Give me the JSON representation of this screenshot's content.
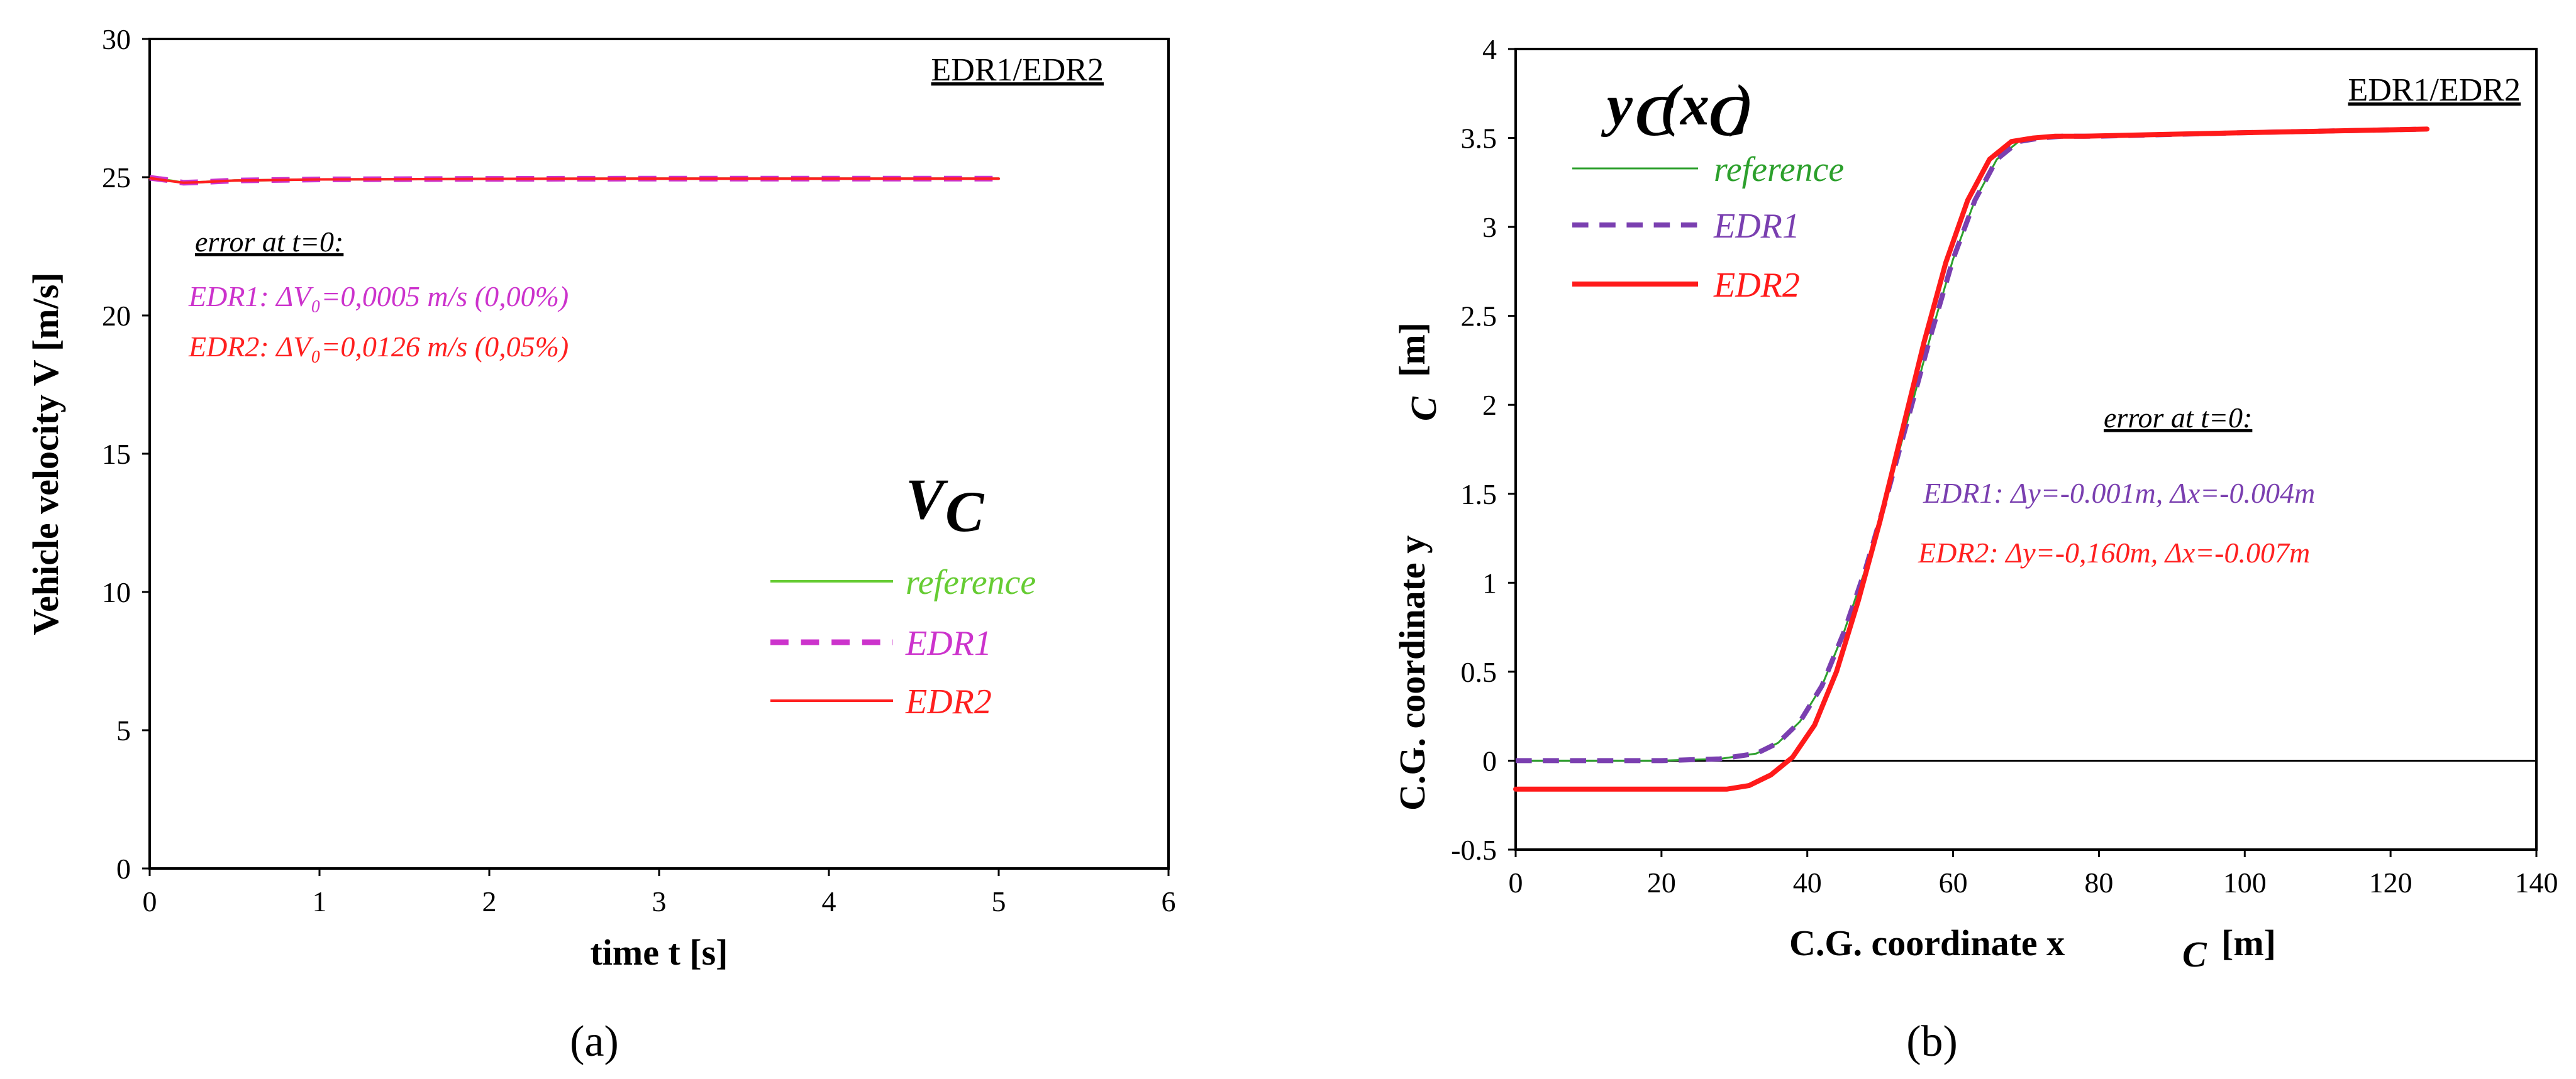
{
  "chart_data": [
    {
      "type": "line",
      "panel_label": "(a)",
      "corner_tag": "EDR1/EDR2",
      "symbol": "V",
      "symbol_sub": "C",
      "xlabel": "time t [s]",
      "ylabel": "Vehicle velocity V [m/s]",
      "xlim": [
        0,
        6
      ],
      "ylim": [
        0,
        30
      ],
      "x_ticks": [
        "0",
        "1",
        "2",
        "3",
        "4",
        "5",
        "6"
      ],
      "y_ticks": [
        "0",
        "5",
        "10",
        "15",
        "20",
        "25",
        "30"
      ],
      "annotation_title": "error at t=0:",
      "annotations": [
        {
          "label": "EDR1: ΔV₀=0,0005 m/s (0,00%)",
          "color": "#cc33cc"
        },
        {
          "label": "EDR2: ΔV₀=0,0126 m/s (0,05%)",
          "color": "#ff2020"
        }
      ],
      "series": [
        {
          "name": "reference",
          "color": "#66cc33",
          "style": "solid",
          "width": 4,
          "x": [
            0,
            0.1,
            0.2,
            0.3,
            0.5,
            1,
            2,
            3,
            4,
            5
          ],
          "y": [
            24.98,
            24.9,
            24.8,
            24.82,
            24.88,
            24.92,
            24.94,
            24.95,
            24.95,
            24.95
          ]
        },
        {
          "name": "EDR1",
          "color": "#cc33cc",
          "style": "dashed",
          "width": 9,
          "x": [
            0,
            0.1,
            0.2,
            0.3,
            0.5,
            1,
            2,
            3,
            4,
            5
          ],
          "y": [
            24.98,
            24.9,
            24.8,
            24.82,
            24.88,
            24.92,
            24.94,
            24.95,
            24.95,
            24.95
          ]
        },
        {
          "name": "EDR2",
          "color": "#ff2020",
          "style": "solid",
          "width": 4,
          "x": [
            0,
            0.1,
            0.2,
            0.3,
            0.5,
            1,
            2,
            3,
            4,
            5
          ],
          "y": [
            24.97,
            24.88,
            24.8,
            24.82,
            24.88,
            24.92,
            24.94,
            24.95,
            24.95,
            24.95
          ]
        }
      ]
    },
    {
      "type": "line",
      "panel_label": "(b)",
      "corner_tag": "EDR1/EDR2",
      "symbol": "y",
      "symbol_sub": "C",
      "symbol_arg": "x",
      "symbol_arg_sub": "C",
      "xlabel": "C.G. coordinate x",
      "xlabel_sub": "C",
      "xlabel_unit": "[m]",
      "ylabel": "C.G. coordinate y",
      "ylabel_sub": "C",
      "ylabel_unit": "[m]",
      "xlim": [
        0,
        140
      ],
      "ylim": [
        -0.5,
        4
      ],
      "x_ticks": [
        "0",
        "20",
        "40",
        "60",
        "80",
        "100",
        "120",
        "140"
      ],
      "y_ticks": [
        "-0.5",
        "0",
        "0.5",
        "1",
        "1.5",
        "2",
        "2.5",
        "3",
        "3.5",
        "4"
      ],
      "annotation_title": "error at t=0:",
      "annotations": [
        {
          "label": "EDR1: Δy=-0.001m, Δx=-0.004m",
          "color": "#7a3fb0"
        },
        {
          "label": "EDR2: Δy=-0,160m, Δx=-0.007m",
          "color": "#ff2020"
        }
      ],
      "series": [
        {
          "name": "reference",
          "color": "#2ca02c",
          "style": "solid",
          "width": 3,
          "x": [
            0,
            20,
            28,
            33,
            36,
            39,
            42,
            45,
            48,
            51,
            54,
            57,
            60,
            63,
            66,
            69,
            72,
            75,
            80,
            100,
            125
          ],
          "y": [
            0,
            0,
            0.01,
            0.04,
            0.1,
            0.22,
            0.42,
            0.72,
            1.08,
            1.5,
            1.95,
            2.4,
            2.82,
            3.15,
            3.38,
            3.48,
            3.5,
            3.51,
            3.51,
            3.53,
            3.55
          ]
        },
        {
          "name": "EDR1",
          "color": "#7a3fb0",
          "style": "dashed",
          "width": 8,
          "x": [
            0,
            20,
            28,
            33,
            36,
            39,
            42,
            45,
            48,
            51,
            54,
            57,
            60,
            63,
            66,
            69,
            72,
            75,
            80,
            100,
            125
          ],
          "y": [
            0,
            0,
            0.01,
            0.04,
            0.1,
            0.22,
            0.42,
            0.72,
            1.08,
            1.5,
            1.95,
            2.4,
            2.82,
            3.15,
            3.38,
            3.48,
            3.5,
            3.51,
            3.51,
            3.53,
            3.55
          ]
        },
        {
          "name": "EDR2",
          "color": "#ff1a1a",
          "style": "solid",
          "width": 8,
          "x": [
            0,
            20,
            29,
            32,
            35,
            38,
            41,
            44,
            47,
            50,
            53,
            56,
            59,
            62,
            65,
            68,
            71,
            74,
            78,
            100,
            125
          ],
          "y": [
            -0.16,
            -0.16,
            -0.16,
            -0.14,
            -0.08,
            0.02,
            0.2,
            0.5,
            0.9,
            1.35,
            1.85,
            2.35,
            2.8,
            3.15,
            3.38,
            3.48,
            3.5,
            3.51,
            3.51,
            3.53,
            3.55
          ]
        }
      ]
    }
  ]
}
